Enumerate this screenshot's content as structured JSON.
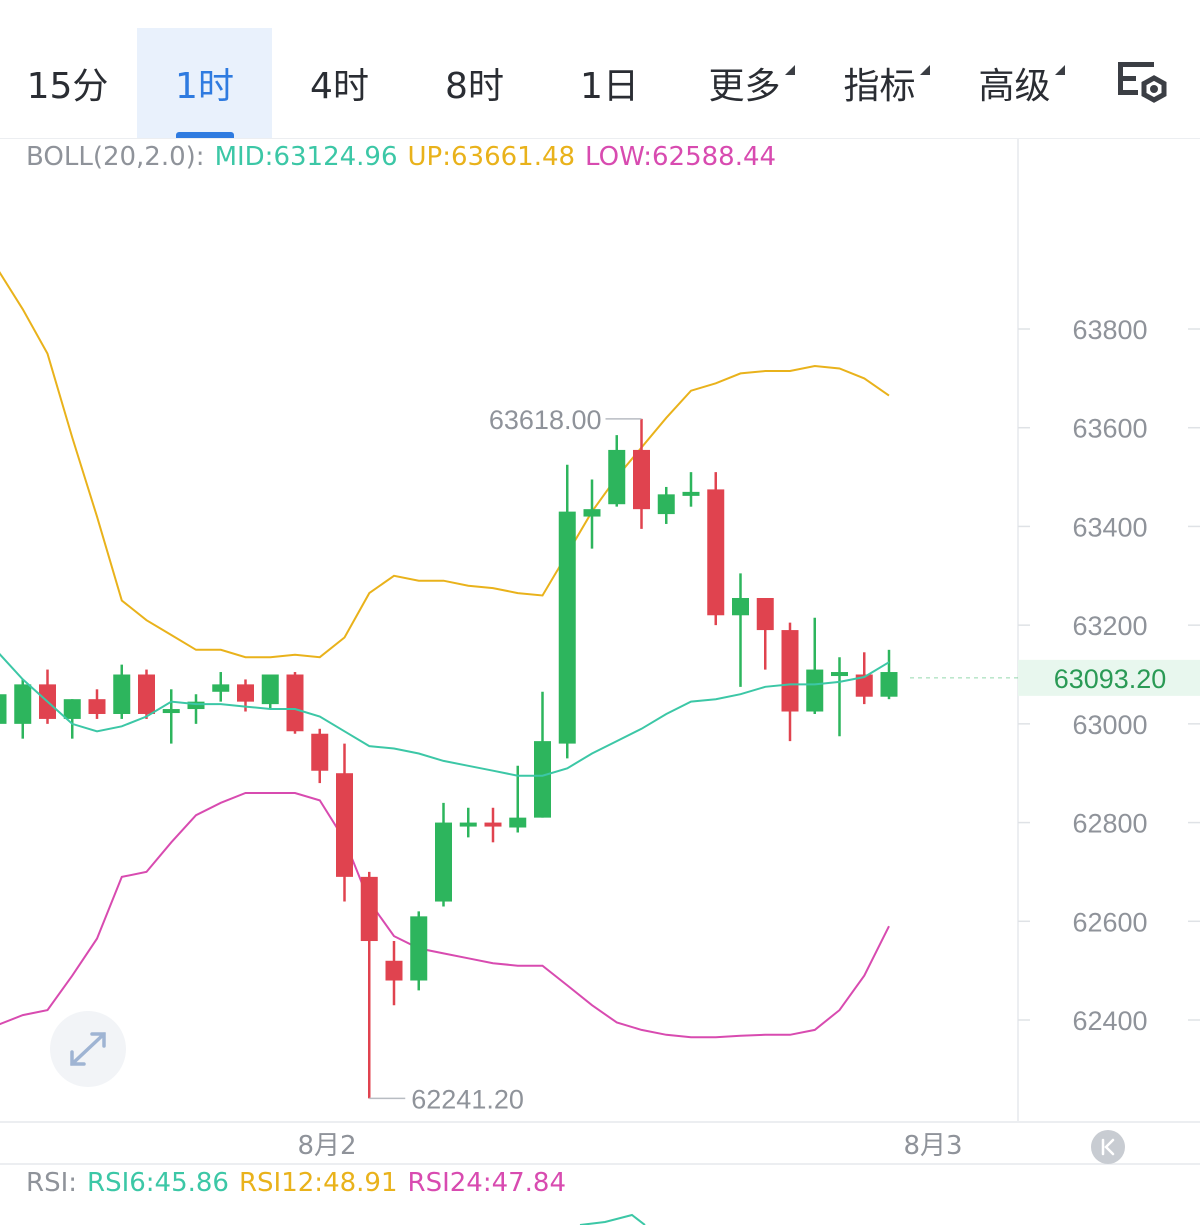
{
  "tabs": [
    {
      "label": "15分",
      "active": false,
      "dropdown": false
    },
    {
      "label": "1时",
      "active": true,
      "dropdown": false
    },
    {
      "label": "4时",
      "active": false,
      "dropdown": false
    },
    {
      "label": "8时",
      "active": false,
      "dropdown": false
    },
    {
      "label": "1日",
      "active": false,
      "dropdown": false
    },
    {
      "label": "更多",
      "active": false,
      "dropdown": true
    },
    {
      "label": "指标",
      "active": false,
      "dropdown": true
    },
    {
      "label": "高级",
      "active": false,
      "dropdown": true
    }
  ],
  "settings_icon": "chart-settings-icon",
  "boll": {
    "name": "BOLL(20,2.0):",
    "mid": "MID:63124.96",
    "up": "UP:63661.48",
    "low": "LOW:62588.44"
  },
  "rsi": {
    "name": "RSI:",
    "rsi6": "RSI6:45.86",
    "rsi12": "RSI12:48.91",
    "rsi24": "RSI24:47.84"
  },
  "colors": {
    "up": "#2db55d",
    "down": "#e0434f",
    "mid": "#3cc7a6",
    "upper": "#e9b21b",
    "lower": "#d84bb0",
    "accent": "#2f7be0",
    "price_bg": "#e8f7ee"
  },
  "price_axis": [
    "63800",
    "63600",
    "63400",
    "63200",
    "63000",
    "62800",
    "62600",
    "62400"
  ],
  "current_price": "63093.20",
  "high_label": "63618.00",
  "low_label": "62241.20",
  "dates": [
    "8月2",
    "8月3"
  ],
  "expand_icon": "expand-icon",
  "scroll_latest_icon": "scroll-to-latest-icon",
  "chart_data": {
    "type": "candlestick",
    "y_range": [
      62241.2,
      63800
    ],
    "candles": [
      {
        "o": 63000,
        "h": 63070,
        "l": 62990,
        "c": 63060
      },
      {
        "o": 63000,
        "h": 63090,
        "l": 62970,
        "c": 63080
      },
      {
        "o": 63080,
        "h": 63110,
        "l": 63000,
        "c": 63010
      },
      {
        "o": 63010,
        "h": 63050,
        "l": 62970,
        "c": 63050
      },
      {
        "o": 63050,
        "h": 63070,
        "l": 63010,
        "c": 63020
      },
      {
        "o": 63020,
        "h": 63120,
        "l": 63010,
        "c": 63100
      },
      {
        "o": 63100,
        "h": 63110,
        "l": 63010,
        "c": 63020
      },
      {
        "o": 63025,
        "h": 63070,
        "l": 62960,
        "c": 63030
      },
      {
        "o": 63030,
        "h": 63060,
        "l": 63000,
        "c": 63045
      },
      {
        "o": 63065,
        "h": 63105,
        "l": 63045,
        "c": 63080
      },
      {
        "o": 63080,
        "h": 63090,
        "l": 63025,
        "c": 63045
      },
      {
        "o": 63040,
        "h": 63100,
        "l": 63030,
        "c": 63100
      },
      {
        "o": 63100,
        "h": 63105,
        "l": 62980,
        "c": 62985
      },
      {
        "o": 62980,
        "h": 62990,
        "l": 62880,
        "c": 62905
      },
      {
        "o": 62900,
        "h": 62960,
        "l": 62640,
        "c": 62690
      },
      {
        "o": 62690,
        "h": 62700,
        "l": 62241.2,
        "c": 62560
      },
      {
        "o": 62520,
        "h": 62560,
        "l": 62430,
        "c": 62480
      },
      {
        "o": 62480,
        "h": 62620,
        "l": 62460,
        "c": 62610
      },
      {
        "o": 62640,
        "h": 62840,
        "l": 62630,
        "c": 62800
      },
      {
        "o": 62795,
        "h": 62830,
        "l": 62770,
        "c": 62800
      },
      {
        "o": 62800,
        "h": 62830,
        "l": 62760,
        "c": 62795
      },
      {
        "o": 62790,
        "h": 62915,
        "l": 62780,
        "c": 62810
      },
      {
        "o": 62810,
        "h": 63065,
        "l": 62810,
        "c": 62965
      },
      {
        "o": 62960,
        "h": 63525,
        "l": 62930,
        "c": 63430
      },
      {
        "o": 63420,
        "h": 63495,
        "l": 63355,
        "c": 63435
      },
      {
        "o": 63445,
        "h": 63585,
        "l": 63440,
        "c": 63555
      },
      {
        "o": 63555,
        "h": 63618,
        "l": 63395,
        "c": 63435
      },
      {
        "o": 63425,
        "h": 63480,
        "l": 63405,
        "c": 63465
      },
      {
        "o": 63465,
        "h": 63510,
        "l": 63440,
        "c": 63470
      },
      {
        "o": 63475,
        "h": 63510,
        "l": 63200,
        "c": 63220
      },
      {
        "o": 63220,
        "h": 63305,
        "l": 63075,
        "c": 63255
      },
      {
        "o": 63255,
        "h": 63255,
        "l": 63110,
        "c": 63190
      },
      {
        "o": 63190,
        "h": 63205,
        "l": 62965,
        "c": 63025
      },
      {
        "o": 63025,
        "h": 63215,
        "l": 63020,
        "c": 63110
      },
      {
        "o": 63100,
        "h": 63135,
        "l": 62975,
        "c": 63105
      },
      {
        "o": 63100,
        "h": 63145,
        "l": 63040,
        "c": 63055
      },
      {
        "o": 63055,
        "h": 63150,
        "l": 63050,
        "c": 63105
      }
    ],
    "mid_band": [
      63145,
      63090,
      63045,
      63000,
      62985,
      62995,
      63015,
      63045,
      63040,
      63040,
      63035,
      63030,
      63030,
      63015,
      62985,
      62955,
      62950,
      62940,
      62925,
      62915,
      62905,
      62895,
      62895,
      62910,
      62940,
      62965,
      62990,
      63020,
      63045,
      63050,
      63060,
      63075,
      63080,
      63080,
      63085,
      63095,
      63125
    ],
    "upper_band": [
      63920,
      63840,
      63750,
      63580,
      63420,
      63250,
      63210,
      63180,
      63150,
      63150,
      63135,
      63135,
      63140,
      63135,
      63175,
      63265,
      63300,
      63290,
      63290,
      63280,
      63275,
      63265,
      63260,
      63345,
      63430,
      63500,
      63560,
      63620,
      63675,
      63690,
      63710,
      63715,
      63715,
      63725,
      63720,
      63700,
      63665
    ],
    "lower_band": [
      62390,
      62410,
      62420,
      62490,
      62565,
      62690,
      62700,
      62760,
      62815,
      62840,
      62860,
      62860,
      62860,
      62845,
      62765,
      62640,
      62570,
      62545,
      62535,
      62525,
      62515,
      62510,
      62510,
      62470,
      62430,
      62395,
      62380,
      62370,
      62365,
      62365,
      62368,
      62370,
      62370,
      62380,
      62420,
      62490,
      62590
    ]
  }
}
